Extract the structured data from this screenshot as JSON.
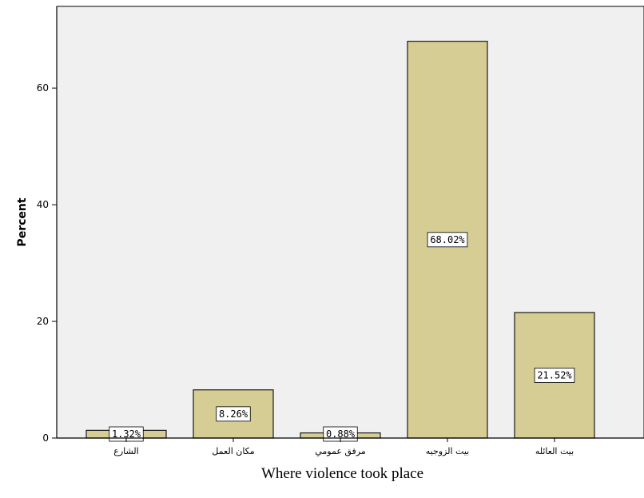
{
  "chart_data": {
    "type": "bar",
    "categories": [
      "الشارع",
      "مكان العمل",
      "مرفق عمومي",
      "بيت الزوجيه",
      "بيت العائله"
    ],
    "values": [
      1.32,
      8.26,
      0.88,
      68.02,
      21.52
    ],
    "data_labels": [
      "1.32%",
      "8.26%",
      "0.88%",
      "68.02%",
      "21.52%"
    ],
    "title": "",
    "xlabel": "Where violence took place",
    "ylabel": "Percent",
    "ylim": [
      0,
      74
    ],
    "yticks": [
      0,
      20,
      40,
      60
    ],
    "ytick_labels": [
      "0",
      "20",
      "40",
      "60"
    ],
    "grid": false,
    "colors": {
      "bar_fill": "#d5cd93",
      "bar_stroke": "#1a1a1a",
      "plot_bg": "#f0f0f0",
      "axis": "#000000",
      "label_box_fill": "#ffffff"
    }
  }
}
